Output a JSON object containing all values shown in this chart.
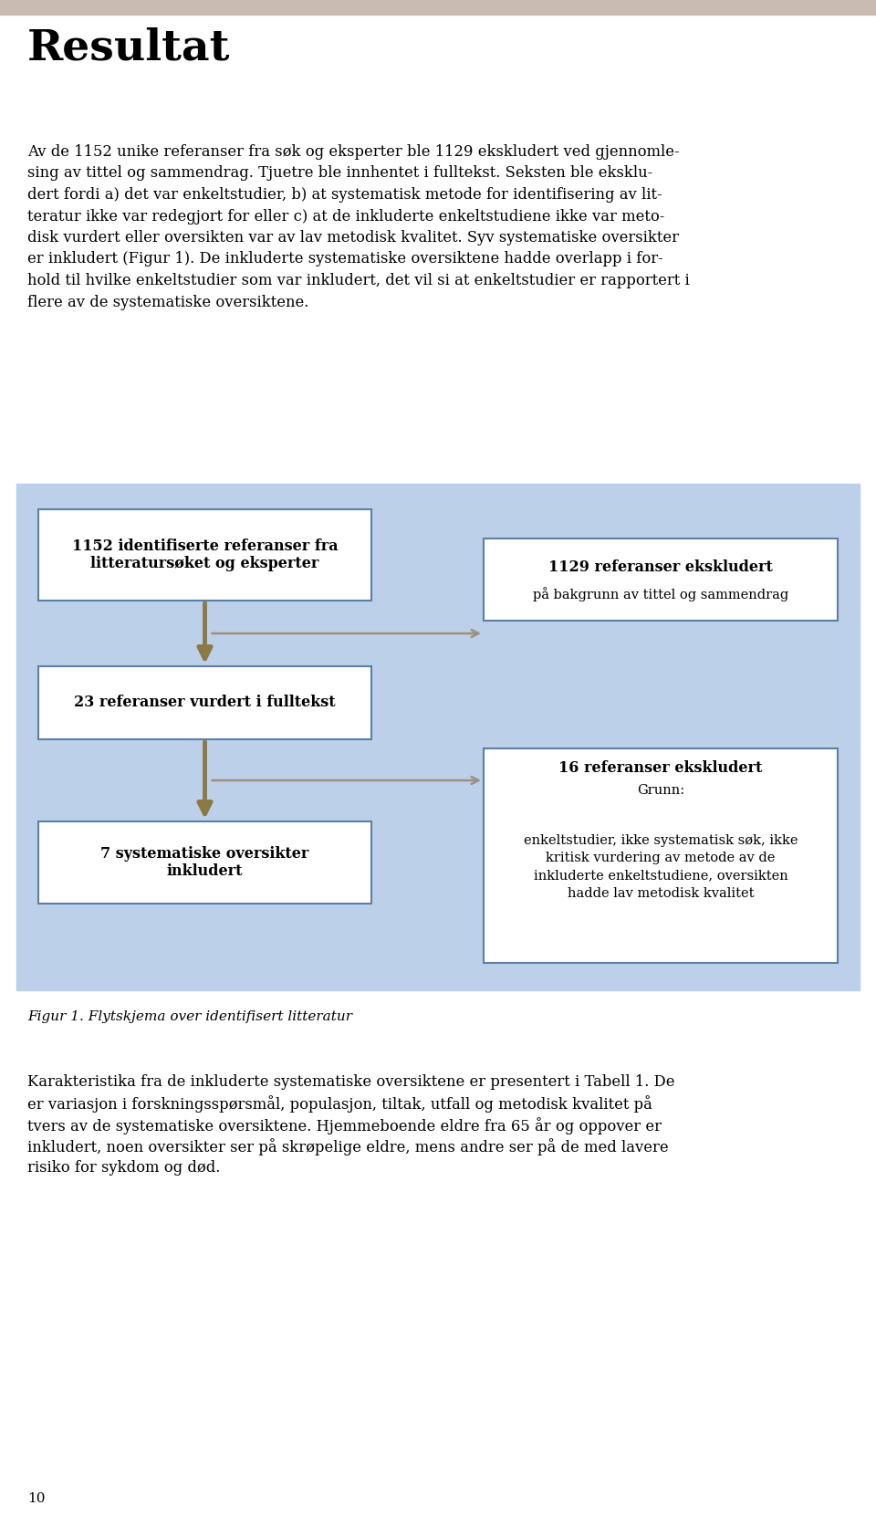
{
  "title": "Resultat",
  "header_bar_color": "#c9bab2",
  "page_bg": "#ffffff",
  "flowchart_bg": "#bdd0e9",
  "white_box_color": "#ffffff",
  "white_box_border": "#5b7fa6",
  "arrow_down_color": "#8b7a45",
  "arrow_horiz_color": "#9b9080",
  "box1_text": "1152 identifiserte referanser fra\nlitteratursøket og eksperter",
  "box2_text": "23 referanser vurdert i fulltekst",
  "box3_text": "7 systematiske oversikter\ninkludert",
  "side_box1_title": "1129 referanser ekskludert",
  "side_box1_text": "på bakgrunn av tittel og sammendrag",
  "side_box2_title": "16 referanser ekskludert",
  "side_box2_subtitle": "Grunn:",
  "side_box2_text": "enkeltstudier, ikke systematisk søk, ikke\nkritisk vurdering av metode av de\ninkluderte enkeltstudiene, oversikten\nhadde lav metodisk kvalitet",
  "figure_caption": "Figur 1. Flytskjema over identifisert litteratur",
  "page_number": "10",
  "body_lines": [
    "Av de 1152 unike referanser fra søk og eksperter ble 1129 ekskludert ved gjennomle-",
    "sing av tittel og sammendrag. Tjuetre ble innhentet i fulltekst. Seksten ble eksklu-",
    "dert fordi a) det var enkeltstudier, b) at systematisk metode for identifisering av lit-",
    "teratur ikke var redegjort for eller c) at de inkluderte enkeltstudiene ikke var meto-",
    "disk vurdert eller oversikten var av lav metodisk kvalitet. Syv systematiske oversikter",
    "er inkludert (Figur 1). De inkluderte systematiske oversiktene hadde overlapp i for-",
    "hold til hvilke enkeltstudier som var inkludert, det vil si at enkeltstudier er rapportert i",
    "flere av de systematiske oversiktene."
  ],
  "footer_lines": [
    "Karakteristika fra de inkluderte systematiske oversiktene er presentert i Tabell 1. De",
    "er variasjon i forskningsspørsmål, populasjon, tiltak, utfall og metodisk kvalitet på",
    "tvers av de systematiske oversiktene. Hjemmeboende eldre fra 65 år og oppover er",
    "inkludert, noen oversikter ser på skrøpelige eldre, mens andre ser på de med lavere",
    "risiko for sykdom og død."
  ]
}
